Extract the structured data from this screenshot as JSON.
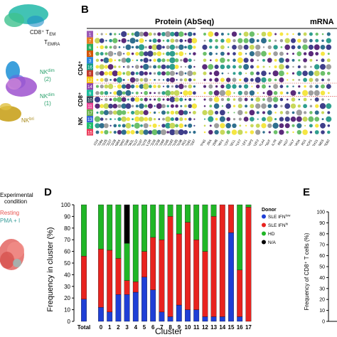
{
  "panel_a": {
    "labels": {
      "tem_line1": "CD8⁺ T",
      "tem_sub1": "EM",
      "tem_line2": "T",
      "tem_sub2": "EMRA",
      "nk_dim2": "NK",
      "nk_dim2_sup": "dim",
      "nk_dim2_num": "(2)",
      "nk_dim1": "NK",
      "nk_dim1_sup": "dim",
      "nk_dim1_num": "(1)",
      "nk_bri": "NK",
      "nk_bri_sup": "bri"
    }
  },
  "panel_b": {
    "letter": "B",
    "protein_header": "Protein (AbSeq)",
    "mrna_header": "mRNA",
    "row_group_labels": [
      "CD4⁺",
      "CD8⁺",
      "NK"
    ],
    "cluster_rows": [
      "1",
      "7",
      "6",
      "5",
      "3",
      "16",
      "0",
      "12",
      "14",
      "9",
      "10",
      "11",
      "17",
      "13",
      "2",
      "15"
    ],
    "row_colors": [
      "#9b59b6",
      "#e67e22",
      "#27ae60",
      "#d35400",
      "#2e86de",
      "#16a085",
      "#c0392b",
      "#f1c40f",
      "#8e44ad",
      "#1abc9c",
      "#34495e",
      "#e84393",
      "#6ab04c",
      "#3867d6",
      "#20bf6b",
      "#eb3b5a"
    ],
    "protein_cols": [
      "CD4",
      "CD8a",
      "CD25",
      "CD27",
      "CD28",
      "CD45RA",
      "CD45RO",
      "CD56",
      "CD62L",
      "CD127",
      "CD197",
      "CD279",
      "HLA-DR",
      "CD16",
      "CD38",
      "CD69",
      "CD95",
      "CD183",
      "CD185",
      "CD196",
      "KLRG1",
      "CD161",
      "CD57"
    ],
    "mrna_cols": [
      "IFNG",
      "IL2RA",
      "GZMB",
      "PRF1",
      "CCR7",
      "SELL",
      "TCF7",
      "LEF1",
      "FOXP3",
      "IKZF2",
      "CTLA4",
      "TIGIT",
      "IL7R",
      "KLRB1",
      "NKG7",
      "GNLY",
      "FCGR3A",
      "KLRD1",
      "CX3CR1",
      "TBX21",
      "EOMES",
      "ZEB2"
    ]
  },
  "panel_c": {
    "legend_title_1": "Experimental",
    "legend_title_2": "condition",
    "legend_items": [
      {
        "label": "Resting",
        "color": "#e8534e"
      },
      {
        "label": "PMA + I",
        "color": "#5fc3c0"
      }
    ]
  },
  "panel_d": {
    "letter": "D",
    "xlabel": "Cluster",
    "ylabel": "Frequency in cluster (%)",
    "legend_title": "Donor",
    "legend": [
      {
        "label": "SLE IFN",
        "sup": "low",
        "color": "#1f3fd6"
      },
      {
        "label": "SLE IFN",
        "sup": "hi",
        "color": "#e8231f"
      },
      {
        "label": "HD",
        "sup": "",
        "color": "#20b626"
      },
      {
        "label": "N/A",
        "sup": "",
        "color": "#000000"
      }
    ]
  },
  "panel_e": {
    "letter": "E",
    "ylabel": "Frequency of CD8⁺ T cells (%)",
    "yticks": [
      "0",
      "10",
      "20",
      "30",
      "40",
      "50",
      "60",
      "70",
      "80",
      "90",
      "100"
    ]
  },
  "chart_data": [
    {
      "type": "bar",
      "stacked": true,
      "categories": [
        "Total",
        "0",
        "1",
        "2",
        "3",
        "4",
        "5",
        "6",
        "7",
        "8",
        "9",
        "10",
        "11",
        "12",
        "13",
        "14",
        "15",
        "16",
        "17"
      ],
      "series": [
        {
          "name": "SLE IFNlow",
          "values": [
            19,
            12,
            8,
            23,
            23,
            25,
            38,
            27,
            8,
            4,
            14,
            10,
            10,
            4,
            4,
            4,
            76,
            4,
            0
          ]
        },
        {
          "name": "SLE IFNhi",
          "values": [
            37,
            50,
            53,
            31,
            12,
            9,
            22,
            45,
            62,
            86,
            61,
            75,
            60,
            56,
            86,
            96,
            24,
            40,
            98
          ]
        },
        {
          "name": "HD",
          "values": [
            44,
            38,
            39,
            46,
            32,
            66,
            40,
            28,
            30,
            10,
            25,
            15,
            30,
            40,
            10,
            0,
            0,
            56,
            2
          ]
        },
        {
          "name": "N/A",
          "values": [
            0,
            0,
            0,
            0,
            33,
            0,
            0,
            0,
            0,
            0,
            0,
            0,
            0,
            0,
            0,
            0,
            0,
            0,
            0
          ]
        }
      ],
      "xlabel": "Cluster",
      "ylabel": "Frequency in cluster (%)",
      "ylim": [
        0,
        100
      ],
      "yticks": [
        0,
        10,
        20,
        30,
        40,
        50,
        60,
        70,
        80,
        90,
        100
      ],
      "legend_position": "right"
    }
  ]
}
